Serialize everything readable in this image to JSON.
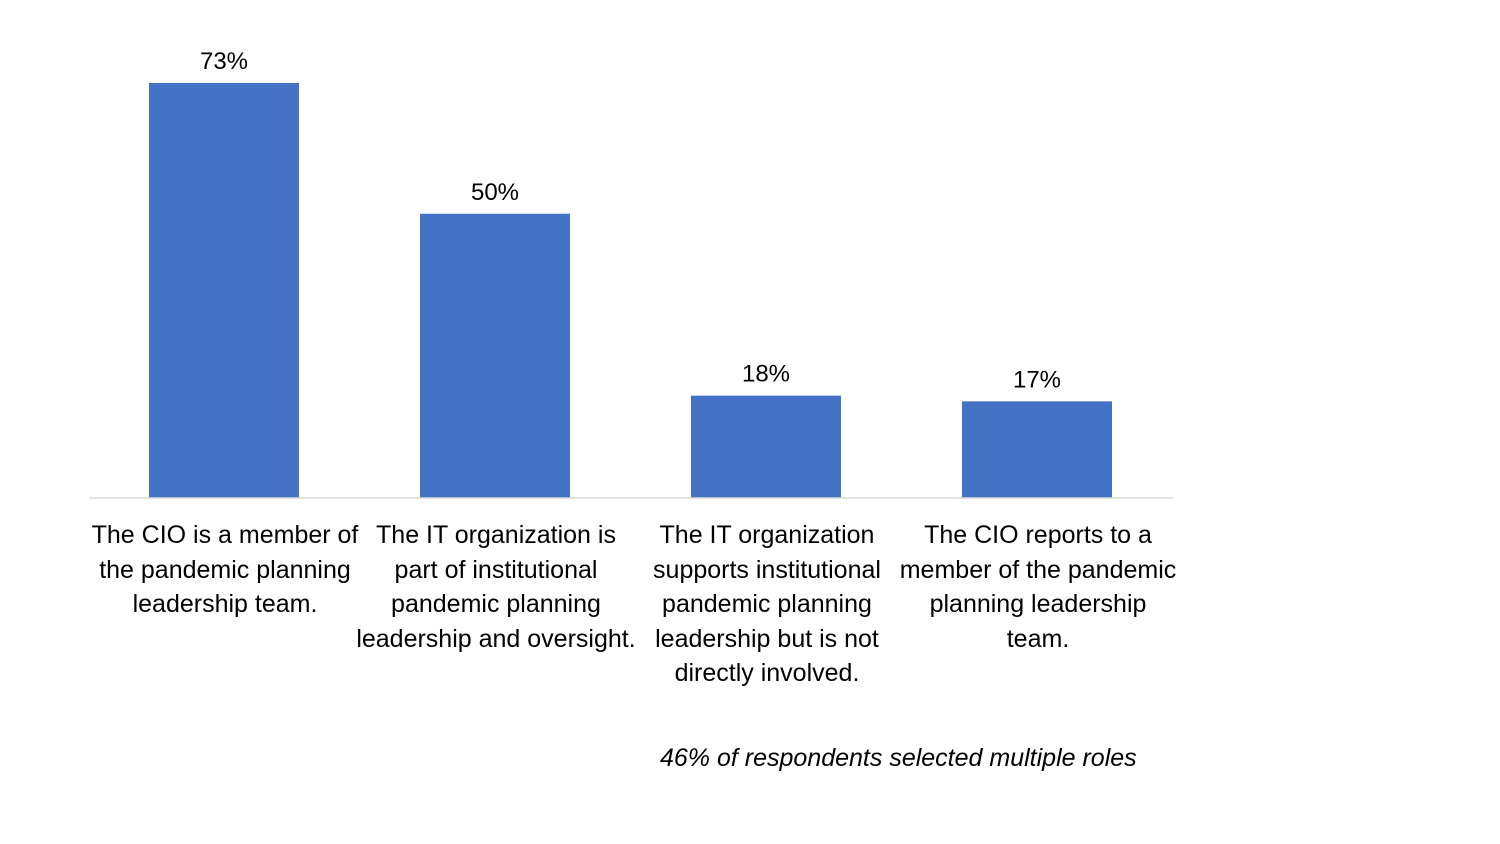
{
  "chart_data": {
    "type": "bar",
    "categories": [
      "The CIO is a member of the pandemic planning leadership team.",
      "The IT organization is part of institutional pandemic planning leadership and oversight.",
      "The IT organization supports institutional pandemic planning leadership but is not directly involved.",
      "The CIO reports to a member of the pandemic planning leadership team."
    ],
    "values": [
      73,
      50,
      18,
      17
    ],
    "data_labels": [
      "73%",
      "50%",
      "18%",
      "17%"
    ],
    "ylim": [
      0,
      73
    ],
    "grid": false,
    "legend": "none",
    "colors": {
      "bar": "#4472C4",
      "axis": "#D9D9D9"
    }
  },
  "footnote": "46% of respondents selected multiple roles"
}
